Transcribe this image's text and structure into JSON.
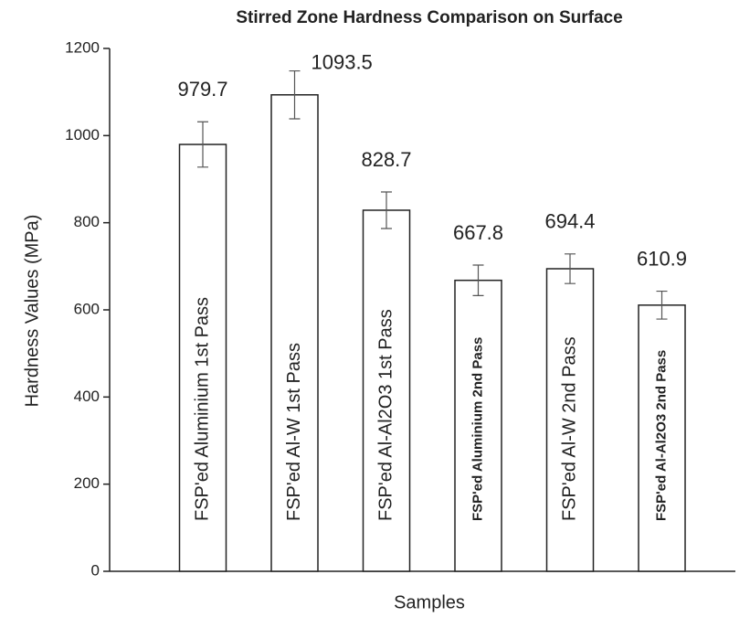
{
  "chart_data": {
    "type": "bar",
    "title": "Stirred Zone Hardness Comparison on Surface",
    "x_label": "Samples",
    "y_label": "Hardness Values (MPa)",
    "categories": [
      "FSP'ed Aluminium 1st Pass",
      "FSP'ed Al-W 1st Pass",
      "FSP'ed Al-Al2O3 1st Pass",
      "FSP'ed Aluminium 2nd Pass",
      "FSP'ed Al-W 2nd Pass",
      "FSP'ed Al-Al2O3 2nd Pass"
    ],
    "values": [
      979.7,
      1093.5,
      828.7,
      667.8,
      694.4,
      610.9
    ],
    "value_labels": [
      "979.7",
      "1093.5",
      "828.7",
      "667.8",
      "694.4",
      "610.9"
    ],
    "errors": [
      52,
      55,
      42,
      35,
      34,
      32
    ],
    "color": "#ffffff",
    "ylim": [
      0,
      1200
    ],
    "yticks": [
      0,
      200,
      400,
      600,
      800,
      1000,
      1200
    ],
    "grid": false
  }
}
